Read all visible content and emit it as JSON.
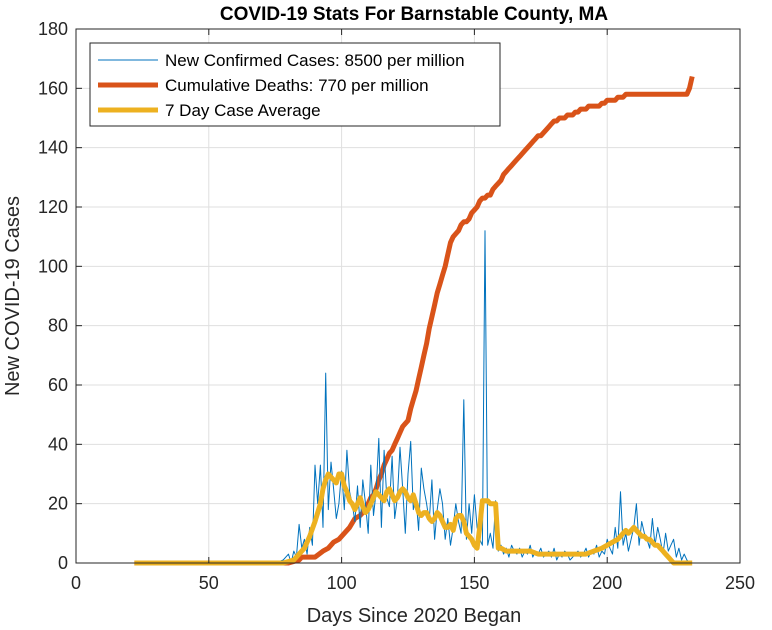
{
  "chart_data": {
    "type": "line",
    "title": "COVID-19 Stats For Barnstable County, MA",
    "xlabel": "Days Since 2020 Began",
    "ylabel": "New COVID-19 Cases",
    "xlim": [
      0,
      250
    ],
    "ylim": [
      0,
      180
    ],
    "xticks": [
      0,
      50,
      100,
      150,
      200,
      250
    ],
    "yticks": [
      0,
      20,
      40,
      60,
      80,
      100,
      120,
      140,
      160,
      180
    ],
    "grid": true,
    "legend_position": "top-left",
    "series": [
      {
        "name": "New Confirmed Cases: 8500 per million",
        "color": "#0072BD",
        "style": "thin",
        "x": [
          22,
          60,
          75,
          78,
          80,
          81,
          82,
          83,
          84,
          85,
          86,
          87,
          88,
          89,
          90,
          91,
          92,
          93,
          94,
          95,
          96,
          97,
          98,
          99,
          100,
          101,
          102,
          103,
          104,
          105,
          106,
          107,
          108,
          109,
          110,
          111,
          112,
          113,
          114,
          115,
          116,
          117,
          118,
          119,
          120,
          121,
          122,
          123,
          124,
          125,
          126,
          127,
          128,
          129,
          130,
          131,
          132,
          133,
          134,
          135,
          136,
          137,
          138,
          139,
          140,
          141,
          142,
          143,
          144,
          145,
          146,
          147,
          148,
          149,
          150,
          151,
          152,
          153,
          154,
          155,
          156,
          157,
          158,
          159,
          160,
          161,
          162,
          163,
          164,
          165,
          166,
          167,
          168,
          169,
          170,
          171,
          172,
          173,
          174,
          175,
          176,
          177,
          178,
          179,
          180,
          181,
          182,
          183,
          184,
          185,
          186,
          187,
          188,
          189,
          190,
          191,
          192,
          193,
          194,
          195,
          196,
          197,
          198,
          199,
          200,
          201,
          202,
          203,
          204,
          205,
          206,
          207,
          208,
          209,
          210,
          211,
          212,
          213,
          214,
          215,
          216,
          217,
          218,
          219,
          220,
          221,
          222,
          223,
          224,
          225,
          226,
          227,
          228,
          229,
          230,
          231,
          232
        ],
        "y": [
          0,
          0,
          0,
          1,
          3,
          0,
          4,
          2,
          13,
          5,
          8,
          3,
          12,
          6,
          33,
          20,
          33,
          12,
          64,
          18,
          34,
          25,
          15,
          20,
          31,
          18,
          38,
          24,
          20,
          14,
          26,
          12,
          28,
          20,
          10,
          33,
          16,
          24,
          42,
          12,
          38,
          22,
          19,
          36,
          15,
          22,
          39,
          25,
          10,
          30,
          41,
          18,
          22,
          11,
          32,
          25,
          20,
          14,
          28,
          8,
          18,
          25,
          20,
          8,
          15,
          6,
          12,
          20,
          14,
          10,
          55,
          8,
          20,
          10,
          23,
          12,
          8,
          6,
          112,
          6,
          10,
          5,
          21,
          4,
          6,
          3,
          5,
          2,
          6,
          4,
          3,
          5,
          2,
          4,
          3,
          6,
          2,
          4,
          3,
          5,
          2,
          3,
          4,
          2,
          5,
          1,
          3,
          2,
          4,
          3,
          1,
          2,
          3,
          4,
          2,
          3,
          5,
          2,
          4,
          3,
          6,
          2,
          4,
          3,
          8,
          5,
          3,
          12,
          5,
          24,
          6,
          10,
          4,
          8,
          12,
          20,
          6,
          14,
          10,
          8,
          5,
          15,
          6,
          12,
          8,
          3,
          10,
          4,
          6,
          8,
          2,
          5,
          1,
          3,
          1,
          0,
          0
        ]
      },
      {
        "name": "Cumulative Deaths: 770 per million",
        "color": "#D95319",
        "style": "thick",
        "x": [
          22,
          75,
          80,
          84,
          85,
          87,
          90,
          93,
          95,
          97,
          99,
          101,
          103,
          105,
          107,
          109,
          111,
          112,
          113,
          114,
          115,
          116,
          117,
          118,
          119,
          120,
          121,
          122,
          123,
          124,
          125,
          126,
          127,
          128,
          129,
          130,
          131,
          132,
          133,
          134,
          135,
          136,
          137,
          138,
          139,
          140,
          141,
          142,
          143,
          144,
          145,
          146,
          147,
          148,
          149,
          150,
          151,
          152,
          153,
          154,
          155,
          156,
          157,
          158,
          159,
          160,
          161,
          162,
          163,
          164,
          165,
          166,
          167,
          168,
          169,
          170,
          171,
          172,
          173,
          174,
          175,
          176,
          177,
          178,
          179,
          180,
          181,
          182,
          183,
          184,
          185,
          186,
          187,
          188,
          189,
          190,
          191,
          192,
          193,
          194,
          195,
          196,
          197,
          198,
          199,
          200,
          201,
          202,
          203,
          204,
          205,
          206,
          207,
          208,
          209,
          210,
          211,
          212,
          213,
          214,
          215,
          216,
          217,
          218,
          219,
          220,
          221,
          222,
          223,
          224,
          225,
          226,
          227,
          228,
          229,
          230,
          231,
          232
        ],
        "y": [
          0,
          0,
          0,
          1,
          2,
          2,
          2,
          4,
          5,
          7,
          8,
          10,
          12,
          15,
          16,
          18,
          22,
          23,
          25,
          28,
          30,
          33,
          35,
          37,
          38,
          40,
          42,
          44,
          46,
          47,
          48,
          52,
          55,
          58,
          62,
          66,
          70,
          74,
          79,
          83,
          87,
          91,
          94,
          97,
          100,
          104,
          108,
          110,
          111,
          112,
          114,
          115,
          115,
          116,
          118,
          119,
          120,
          122,
          123,
          123,
          124,
          124,
          126,
          127,
          128,
          129,
          131,
          132,
          133,
          134,
          135,
          136,
          137,
          138,
          139,
          140,
          141,
          142,
          143,
          144,
          144,
          145,
          146,
          147,
          148,
          149,
          149,
          150,
          150,
          150,
          151,
          151,
          151,
          152,
          152,
          153,
          153,
          153,
          154,
          154,
          154,
          154,
          154,
          155,
          155,
          156,
          156,
          156,
          156,
          157,
          157,
          157,
          158,
          158,
          158,
          158,
          158,
          158,
          158,
          158,
          158,
          158,
          158,
          158,
          158,
          158,
          158,
          158,
          158,
          158,
          158,
          158,
          158,
          158,
          158,
          158,
          160,
          164
        ]
      },
      {
        "name": "7 Day Case Average",
        "color": "#EDB120",
        "style": "thick",
        "x": [
          22,
          78,
          82,
          84,
          86,
          88,
          90,
          91,
          92,
          93,
          94,
          95,
          96,
          97,
          98,
          99,
          100,
          101,
          102,
          103,
          104,
          105,
          106,
          107,
          108,
          109,
          110,
          111,
          112,
          113,
          114,
          115,
          116,
          117,
          118,
          119,
          120,
          121,
          122,
          123,
          124,
          125,
          126,
          127,
          128,
          129,
          130,
          131,
          132,
          133,
          134,
          135,
          136,
          137,
          138,
          139,
          140,
          141,
          142,
          143,
          144,
          145,
          146,
          147,
          148,
          149,
          150,
          151,
          152,
          153,
          154,
          155,
          156,
          157,
          158,
          159,
          160,
          162,
          165,
          168,
          171,
          174,
          177,
          180,
          183,
          186,
          189,
          192,
          195,
          198,
          200,
          202,
          204,
          205,
          206,
          207,
          208,
          209,
          210,
          211,
          212,
          213,
          214,
          215,
          216,
          217,
          218,
          219,
          220,
          221,
          222,
          223,
          224,
          225,
          226,
          227,
          228,
          229,
          230,
          231,
          232
        ],
        "y": [
          0,
          0,
          1,
          3,
          5,
          9,
          14,
          17,
          20,
          25,
          28,
          30,
          29,
          28,
          27,
          30,
          30,
          26,
          24,
          21,
          20,
          18,
          20,
          22,
          19,
          17,
          18,
          20,
          22,
          24,
          23,
          22,
          21,
          24,
          25,
          23,
          21,
          22,
          24,
          25,
          24,
          22,
          21,
          23,
          20,
          17,
          16,
          17,
          17,
          15,
          14,
          15,
          17,
          16,
          14,
          12,
          12,
          13,
          11,
          15,
          16,
          16,
          14,
          10,
          9,
          8,
          6,
          5,
          12,
          21,
          21,
          21,
          20,
          20,
          20,
          5,
          5,
          4,
          4,
          4,
          4,
          3,
          3,
          3,
          3,
          3,
          3,
          3,
          4,
          5,
          6,
          7,
          8,
          9,
          10,
          11,
          10,
          11,
          12,
          11,
          10,
          9,
          9,
          8,
          8,
          7,
          6,
          6,
          5,
          4,
          3,
          2,
          1,
          0,
          0,
          0,
          0,
          0,
          0,
          0,
          0
        ]
      }
    ]
  }
}
